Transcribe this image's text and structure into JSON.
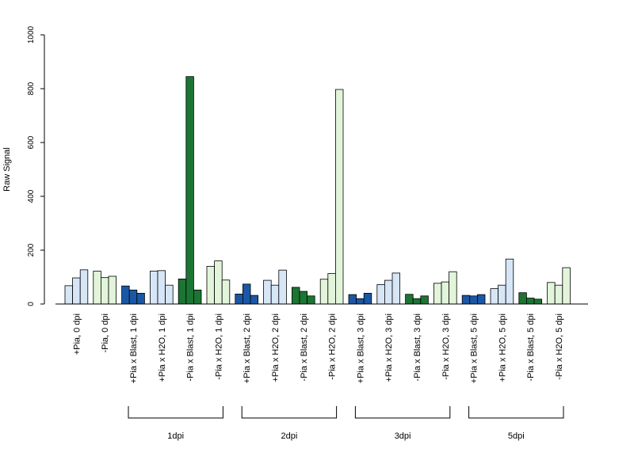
{
  "chart_data": {
    "type": "bar",
    "title": "",
    "xlabel": "",
    "ylabel": "Raw Signal",
    "ylim": [
      0,
      1000
    ],
    "yticks": [
      0,
      200,
      400,
      600,
      800,
      1000
    ],
    "grid": false,
    "legend": "none",
    "categories": [
      "+Pia, 0 dpi",
      "-Pia, 0 dpi",
      "+Pia x Blast, 1 dpi",
      "+Pia x H2O, 1 dpi",
      "-Pia x Blast, 1 dpi",
      "-Pia x H2O, 1 dpi",
      "+Pia x Blast, 2 dpi",
      "+Pia x H2O, 2 dpi",
      "-Pia x Blast, 2 dpi",
      "-Pia x H2O, 2 dpi",
      "+Pia x Blast, 3 dpi",
      "+Pia x H2O, 3 dpi",
      "-Pia x Blast, 3 dpi",
      "-Pia x H2O, 3 dpi",
      "+Pia x Blast, 5 dpi",
      "+Pia x H2O, 5 dpi",
      "-Pia x Blast, 5 dpi",
      "-Pia x H2O, 5 dpi"
    ],
    "values": [
      [
        68,
        97,
        127
      ],
      [
        122,
        98,
        103
      ],
      [
        67,
        52,
        40
      ],
      [
        122,
        124,
        70
      ],
      [
        93,
        845,
        52
      ],
      [
        140,
        160,
        89
      ],
      [
        37,
        74,
        32
      ],
      [
        88,
        70,
        126
      ],
      [
        62,
        47,
        30
      ],
      [
        92,
        113,
        797
      ],
      [
        35,
        20,
        40
      ],
      [
        72,
        88,
        115
      ],
      [
        36,
        20,
        30
      ],
      [
        77,
        82,
        120
      ],
      [
        32,
        30,
        35
      ],
      [
        57,
        70,
        167
      ],
      [
        42,
        22,
        18
      ],
      [
        80,
        70,
        135
      ]
    ],
    "colors": [
      "#d6e6f7",
      "#e2f4da",
      "#1a58a5",
      "#d6e6f7",
      "#1c7533",
      "#e2f4da",
      "#1a58a5",
      "#d6e6f7",
      "#1c7533",
      "#e2f4da",
      "#1a58a5",
      "#d6e6f7",
      "#1c7533",
      "#e2f4da",
      "#1a58a5",
      "#d6e6f7",
      "#1c7533",
      "#e2f4da"
    ],
    "groups": [
      {
        "label": "1dpi",
        "from": 2,
        "to": 5
      },
      {
        "label": "2dpi",
        "from": 6,
        "to": 9
      },
      {
        "label": "3dpi",
        "from": 10,
        "to": 13
      },
      {
        "label": "5dpi",
        "from": 14,
        "to": 17
      }
    ]
  }
}
